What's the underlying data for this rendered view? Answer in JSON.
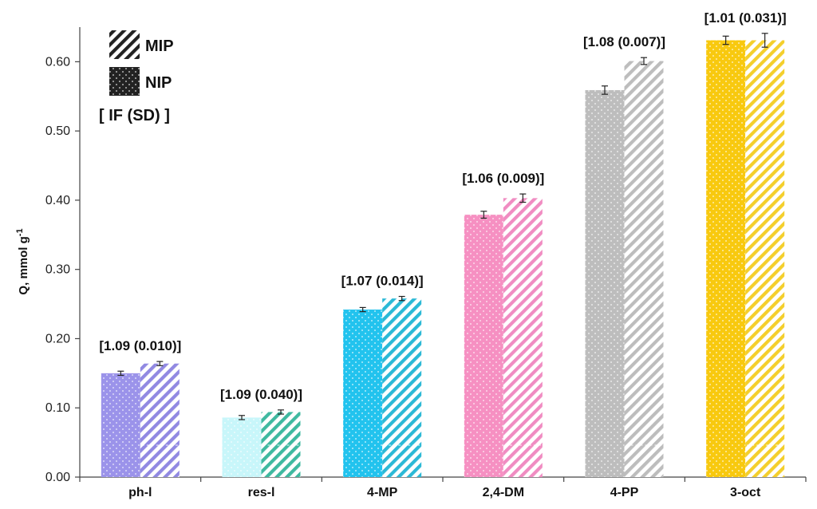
{
  "chart_data": {
    "type": "bar",
    "categories": [
      "ph-l",
      "res-l",
      "4-MP",
      "2,4-DM",
      "4-PP",
      "3-oct"
    ],
    "series": [
      {
        "name": "NIP",
        "values": [
          0.15,
          0.086,
          0.242,
          0.379,
          0.559,
          0.631
        ],
        "errors": [
          0.003,
          0.003,
          0.003,
          0.005,
          0.006,
          0.006
        ]
      },
      {
        "name": "MIP",
        "values": [
          0.164,
          0.094,
          0.258,
          0.403,
          0.601,
          0.631
        ],
        "errors": [
          0.003,
          0.003,
          0.003,
          0.006,
          0.005,
          0.01
        ]
      }
    ],
    "annotations": [
      "[1.09 (0.010)]",
      "[1.09 (0.040)]",
      "[1.07 (0.014)]",
      "[1.06 (0.009)]",
      "[1.08 (0.007)]",
      "[1.01 (0.031)]"
    ],
    "category_colors": [
      "#9b93ea",
      "#c8f6fa",
      "#22c3ee",
      "#f690c2",
      "#bdbdbd",
      "#f8c90f"
    ],
    "mip_stripe_colors": [
      "#9189e2",
      "#3fb9a0",
      "#2bb9d6",
      "#f08cc2",
      "#bdbdbd",
      "#f4cf2c"
    ],
    "ylabel": "Q, mmol g",
    "ylabel_superscript": "-1",
    "yticks": [
      "0.00",
      "0.10",
      "0.20",
      "0.30",
      "0.40",
      "0.50",
      "0.60"
    ],
    "ylim": [
      0,
      0.65
    ],
    "grid": false,
    "legend": {
      "placement": "top-left",
      "items": [
        {
          "label": "MIP",
          "pattern": "hatch"
        },
        {
          "label": "NIP",
          "pattern": "dots"
        }
      ],
      "note": "[ IF (SD) ]"
    }
  }
}
